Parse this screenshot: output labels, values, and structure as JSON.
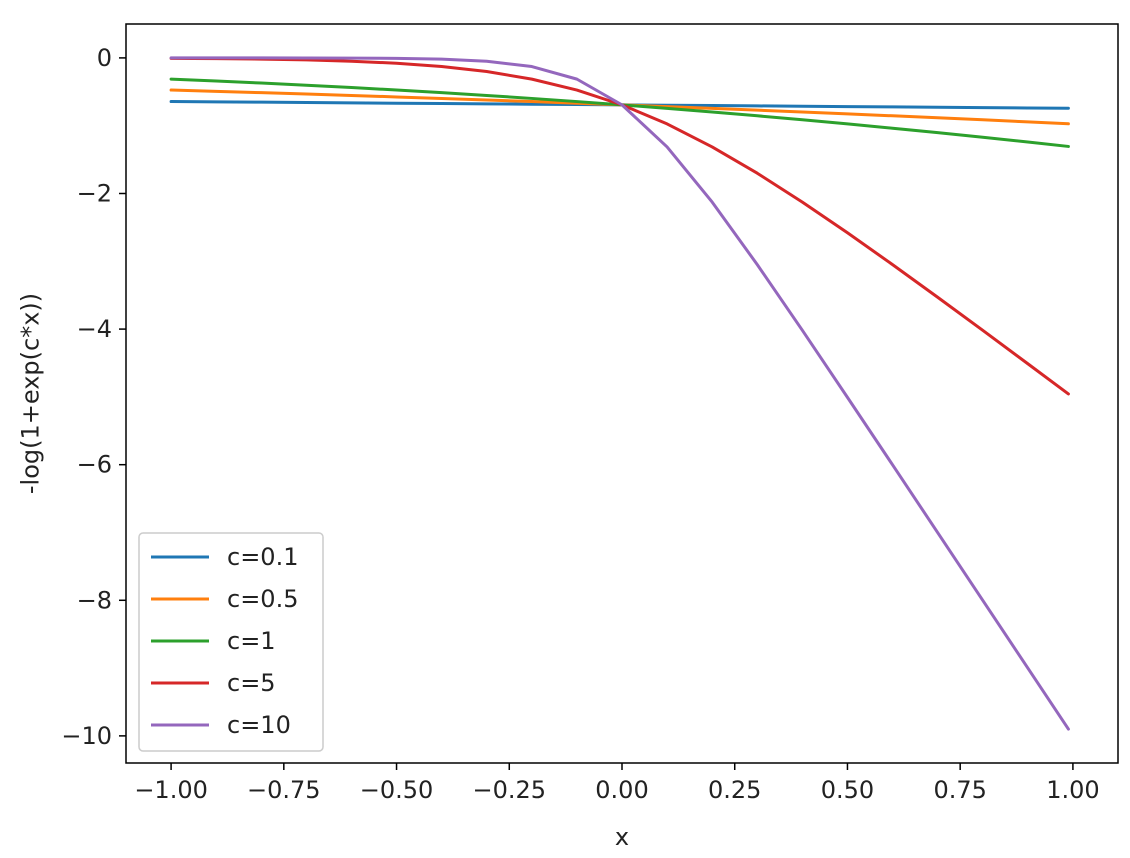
{
  "chart_data": {
    "type": "line",
    "xlabel": "x",
    "ylabel": "-log(1+exp(c*x))",
    "xlim": [
      -1.1,
      1.1
    ],
    "ylim": [
      -10.4,
      0.5
    ],
    "x_ticks": [
      -1.0,
      -0.75,
      -0.5,
      -0.25,
      0.0,
      0.25,
      0.5,
      0.75,
      1.0
    ],
    "x_tick_labels": [
      "−1.00",
      "−0.75",
      "−0.50",
      "−0.25",
      "0.00",
      "0.25",
      "0.50",
      "0.75",
      "1.00"
    ],
    "y_ticks": [
      0,
      -2,
      -4,
      -6,
      -8,
      -10
    ],
    "y_tick_labels": [
      "0",
      "−2",
      "−4",
      "−6",
      "−8",
      "−10"
    ],
    "grid": false,
    "legend_position": "lower-left",
    "x": [
      -1.0,
      -0.9,
      -0.8,
      -0.7,
      -0.6,
      -0.5,
      -0.4,
      -0.3,
      -0.2,
      -0.1,
      0.0,
      0.1,
      0.2,
      0.3,
      0.4,
      0.5,
      0.6,
      0.7,
      0.8,
      0.9,
      0.99
    ],
    "series": [
      {
        "name": "c=0.1",
        "color": "#1f77b4",
        "values": [
          -0.644,
          -0.649,
          -0.653,
          -0.658,
          -0.663,
          -0.668,
          -0.673,
          -0.678,
          -0.683,
          -0.688,
          -0.693,
          -0.698,
          -0.703,
          -0.708,
          -0.713,
          -0.718,
          -0.723,
          -0.728,
          -0.733,
          -0.739,
          -0.743
        ]
      },
      {
        "name": "c=0.5",
        "color": "#ff7f0e",
        "values": [
          -0.474,
          -0.494,
          -0.513,
          -0.533,
          -0.554,
          -0.576,
          -0.598,
          -0.621,
          -0.644,
          -0.669,
          -0.693,
          -0.719,
          -0.744,
          -0.771,
          -0.798,
          -0.826,
          -0.854,
          -0.883,
          -0.913,
          -0.944,
          -0.972
        ]
      },
      {
        "name": "c=1",
        "color": "#2ca02c",
        "values": [
          -0.313,
          -0.341,
          -0.371,
          -0.403,
          -0.437,
          -0.474,
          -0.513,
          -0.554,
          -0.598,
          -0.644,
          -0.693,
          -0.744,
          -0.798,
          -0.854,
          -0.913,
          -0.974,
          -1.037,
          -1.103,
          -1.171,
          -1.241,
          -1.306
        ]
      },
      {
        "name": "c=5",
        "color": "#d62728",
        "values": [
          -0.007,
          -0.011,
          -0.018,
          -0.03,
          -0.049,
          -0.079,
          -0.127,
          -0.201,
          -0.313,
          -0.474,
          -0.693,
          -0.974,
          -1.313,
          -1.701,
          -2.127,
          -2.579,
          -3.049,
          -3.53,
          -4.018,
          -4.511,
          -4.957
        ]
      },
      {
        "name": "c=10",
        "color": "#9467bd",
        "values": [
          -4.5e-05,
          -0.0001,
          -0.0003,
          -0.0009,
          -0.0025,
          -0.0067,
          -0.018,
          -0.049,
          -0.127,
          -0.313,
          -0.693,
          -1.313,
          -2.127,
          -3.049,
          -4.018,
          -5.007,
          -6.002,
          -7.001,
          -8.0,
          -9.0,
          -9.9
        ]
      }
    ]
  }
}
